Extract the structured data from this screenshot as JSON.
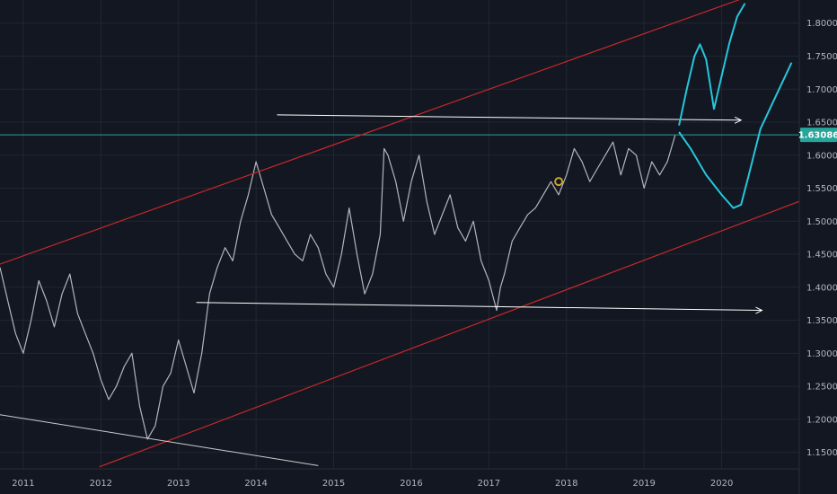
{
  "chart_data": {
    "type": "line",
    "title": "",
    "xlabel": "",
    "ylabel": "",
    "xlim": [
      2010.7,
      2021.0
    ],
    "ylim": [
      1.125,
      1.835
    ],
    "grid": true,
    "x_ticks": [
      "2011",
      "2012",
      "2013",
      "2014",
      "2015",
      "2016",
      "2017",
      "2018",
      "2019",
      "2020"
    ],
    "y_ticks": [
      "1.80000",
      "1.75000",
      "1.70000",
      "1.65000",
      "1.60000",
      "1.55000",
      "1.50000",
      "1.45000",
      "1.40000",
      "1.35000",
      "1.30000",
      "1.25000",
      "1.20000",
      "1.15000"
    ],
    "current_price": "1.63086",
    "current_price_value": 1.63086,
    "price_series": {
      "name": "",
      "x": [
        2010.7,
        2010.8,
        2010.9,
        2011.0,
        2011.1,
        2011.2,
        2011.3,
        2011.4,
        2011.5,
        2011.6,
        2011.7,
        2011.8,
        2011.9,
        2012.0,
        2012.1,
        2012.2,
        2012.3,
        2012.4,
        2012.5,
        2012.6,
        2012.7,
        2012.8,
        2012.9,
        2013.0,
        2013.1,
        2013.2,
        2013.3,
        2013.4,
        2013.5,
        2013.6,
        2013.7,
        2013.8,
        2013.9,
        2014.0,
        2014.1,
        2014.2,
        2014.3,
        2014.4,
        2014.5,
        2014.6,
        2014.7,
        2014.8,
        2014.9,
        2015.0,
        2015.1,
        2015.2,
        2015.3,
        2015.4,
        2015.5,
        2015.6,
        2015.65,
        2015.7,
        2015.8,
        2015.9,
        2016.0,
        2016.1,
        2016.2,
        2016.3,
        2016.4,
        2016.5,
        2016.6,
        2016.7,
        2016.8,
        2016.9,
        2017.0,
        2017.1,
        2017.15,
        2017.2,
        2017.3,
        2017.4,
        2017.5,
        2017.6,
        2017.7,
        2017.8,
        2017.9,
        2018.0,
        2018.1,
        2018.2,
        2018.3,
        2018.4,
        2018.5,
        2018.6,
        2018.7,
        2018.8,
        2018.9,
        2019.0,
        2019.1,
        2019.2,
        2019.3,
        2019.4
      ],
      "y": [
        1.43,
        1.38,
        1.33,
        1.3,
        1.35,
        1.41,
        1.38,
        1.34,
        1.39,
        1.42,
        1.36,
        1.33,
        1.3,
        1.26,
        1.23,
        1.25,
        1.28,
        1.3,
        1.22,
        1.17,
        1.19,
        1.25,
        1.27,
        1.32,
        1.28,
        1.24,
        1.3,
        1.39,
        1.43,
        1.46,
        1.44,
        1.5,
        1.54,
        1.59,
        1.55,
        1.51,
        1.49,
        1.47,
        1.45,
        1.44,
        1.48,
        1.46,
        1.42,
        1.4,
        1.45,
        1.52,
        1.45,
        1.39,
        1.42,
        1.48,
        1.61,
        1.6,
        1.56,
        1.5,
        1.56,
        1.6,
        1.53,
        1.48,
        1.51,
        1.54,
        1.49,
        1.47,
        1.5,
        1.44,
        1.41,
        1.365,
        1.4,
        1.42,
        1.47,
        1.49,
        1.51,
        1.52,
        1.54,
        1.56,
        1.54,
        1.57,
        1.61,
        1.59,
        1.56,
        1.58,
        1.6,
        1.62,
        1.57,
        1.61,
        1.6,
        1.55,
        1.59,
        1.57,
        1.59,
        1.63
      ]
    },
    "channel_lines": [
      {
        "color": "#c62828",
        "points": [
          [
            2010.7,
            1.435
          ],
          [
            2021.0,
            1.868
          ]
        ]
      },
      {
        "color": "#c62828",
        "points": [
          [
            2011.98,
            1.128
          ],
          [
            2021.0,
            1.53
          ]
        ]
      }
    ],
    "horizontal_arrows": [
      {
        "color": "#ffffff",
        "points": [
          [
            2014.27,
            1.661
          ],
          [
            2020.25,
            1.653
          ]
        ]
      },
      {
        "color": "#ffffff",
        "points": [
          [
            2013.23,
            1.377
          ],
          [
            2020.52,
            1.365
          ]
        ]
      }
    ],
    "trend_line_low": {
      "color": "#cccccc",
      "points": [
        [
          2010.7,
          1.207
        ],
        [
          2014.8,
          1.13
        ]
      ]
    },
    "projection_paths": [
      {
        "color": "#26c6da",
        "x": [
          2019.45,
          2019.55,
          2019.65,
          2019.72,
          2019.8,
          2019.9,
          2020.0,
          2020.1,
          2020.2,
          2020.3
        ],
        "y": [
          1.645,
          1.7,
          1.75,
          1.768,
          1.745,
          1.67,
          1.72,
          1.77,
          1.81,
          1.83
        ]
      },
      {
        "color": "#26c6da",
        "x": [
          2019.45,
          2019.6,
          2019.8,
          2020.0,
          2020.15,
          2020.25,
          2020.35,
          2020.5,
          2020.7,
          2020.9
        ],
        "y": [
          1.635,
          1.61,
          1.57,
          1.54,
          1.52,
          1.525,
          1.57,
          1.64,
          1.69,
          1.74
        ]
      }
    ],
    "colors": {
      "background": "#131722",
      "grid": "#222633",
      "price_line": "#b2b5be",
      "price_level_line": "#26a69a",
      "badge": "#26a69a",
      "marker": "#c9a227"
    },
    "marker_point": [
      2017.9,
      1.56
    ]
  }
}
